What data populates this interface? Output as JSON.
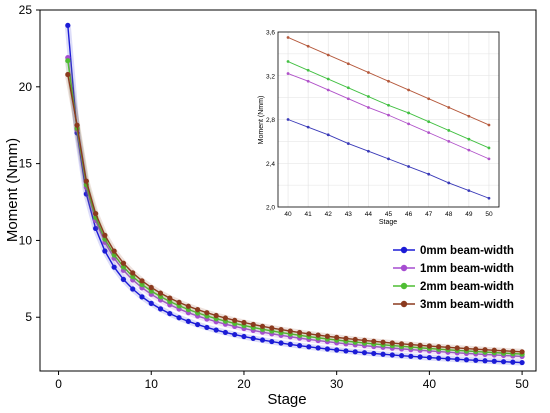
{
  "chart_data": [
    {
      "type": "line",
      "title": "",
      "xlabel": "Stage",
      "ylabel": "Moment (Nmm)",
      "xlim": [
        -2,
        51.5
      ],
      "ylim": [
        1.5,
        25
      ],
      "xticks": [
        0,
        10,
        20,
        30,
        40,
        50
      ],
      "yticks": [
        5,
        10,
        15,
        20,
        25
      ],
      "legend_position": "lower-right",
      "marker": "circle",
      "series": [
        {
          "name": "0mm beam-width",
          "color": "#1b1bd6",
          "x0": 1,
          "y0": 24.0,
          "x_start": 2,
          "x_end": 50,
          "y_at_2": 17.0,
          "y_at_50": 2.05,
          "exponent": 0.65
        },
        {
          "name": "1mm beam-width",
          "color": "#a64dd1",
          "x0": 1,
          "y0": 21.9,
          "x_start": 2,
          "x_end": 50,
          "y_at_2": 17.2,
          "y_at_50": 2.45,
          "exponent": 0.62
        },
        {
          "name": "2mm beam-width",
          "color": "#4fbe33",
          "x0": 1,
          "y0": 21.7,
          "x_start": 2,
          "x_end": 50,
          "y_at_2": 17.3,
          "y_at_50": 2.6,
          "exponent": 0.6
        },
        {
          "name": "3mm beam-width",
          "color": "#8b3a1e",
          "x0": 1,
          "y0": 20.8,
          "x_start": 2,
          "x_end": 50,
          "y_at_2": 17.5,
          "y_at_50": 2.75,
          "exponent": 0.58
        }
      ]
    },
    {
      "type": "line",
      "title": "",
      "xlabel": "Stage",
      "ylabel": "Moment (Nmm)",
      "xlim": [
        39.5,
        50.5
      ],
      "ylim": [
        2.0,
        3.6
      ],
      "xticks": [
        40,
        41,
        42,
        43,
        44,
        45,
        46,
        47,
        48,
        49,
        50
      ],
      "yticks": [
        2.0,
        2.4,
        2.8,
        3.2,
        3.6
      ],
      "ytick_labels": [
        "2,0",
        "2,4",
        "2,8",
        "3,2",
        "3,6"
      ],
      "grid": true,
      "series": [
        {
          "name": "0mm beam-width",
          "color": "#3a3ab8",
          "x": [
            40,
            41,
            42,
            43,
            44,
            45,
            46,
            47,
            48,
            49,
            50
          ],
          "values": [
            2.8,
            2.73,
            2.66,
            2.58,
            2.51,
            2.44,
            2.37,
            2.3,
            2.22,
            2.15,
            2.08
          ]
        },
        {
          "name": "1mm beam-width",
          "color": "#b052c9",
          "x": [
            40,
            41,
            42,
            43,
            44,
            45,
            46,
            47,
            48,
            49,
            50
          ],
          "values": [
            3.22,
            3.15,
            3.07,
            2.99,
            2.91,
            2.84,
            2.76,
            2.68,
            2.6,
            2.52,
            2.44
          ]
        },
        {
          "name": "2mm beam-width",
          "color": "#42c042",
          "x": [
            40,
            41,
            42,
            43,
            44,
            45,
            46,
            47,
            48,
            49,
            50
          ],
          "values": [
            3.33,
            3.25,
            3.17,
            3.09,
            3.01,
            2.93,
            2.86,
            2.78,
            2.7,
            2.62,
            2.54
          ]
        },
        {
          "name": "3mm beam-width",
          "color": "#b5593c",
          "x": [
            40,
            41,
            42,
            43,
            44,
            45,
            46,
            47,
            48,
            49,
            50
          ],
          "values": [
            3.55,
            3.47,
            3.39,
            3.31,
            3.23,
            3.15,
            3.07,
            2.99,
            2.91,
            2.83,
            2.75
          ]
        }
      ]
    }
  ]
}
